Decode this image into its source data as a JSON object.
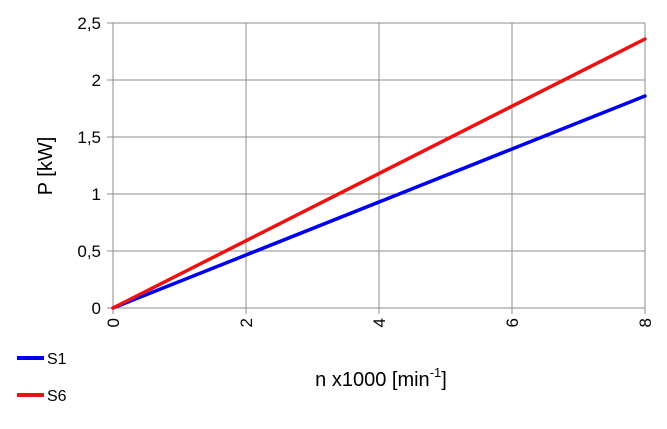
{
  "chart_data": {
    "type": "line",
    "ylabel": "P [kW]",
    "xlabel_main": "n x1000  [min",
    "xlabel_sup": "-1",
    "xlabel_close": "]",
    "x_ticks": [
      "0",
      "2",
      "4",
      "6",
      "8"
    ],
    "y_ticks": [
      "0",
      "0,5",
      "1",
      "1,5",
      "2",
      "2,5"
    ],
    "xlim": [
      0,
      8
    ],
    "ylim": [
      0,
      2.5
    ],
    "grid": true,
    "legend_position": "bottom-left",
    "series": [
      {
        "name": "S1",
        "color": "#0000ee",
        "points": [
          [
            0,
            0
          ],
          [
            8,
            1.86
          ]
        ]
      },
      {
        "name": "S6",
        "color": "#ee1111",
        "points": [
          [
            0,
            0
          ],
          [
            8,
            2.36
          ]
        ]
      }
    ]
  }
}
